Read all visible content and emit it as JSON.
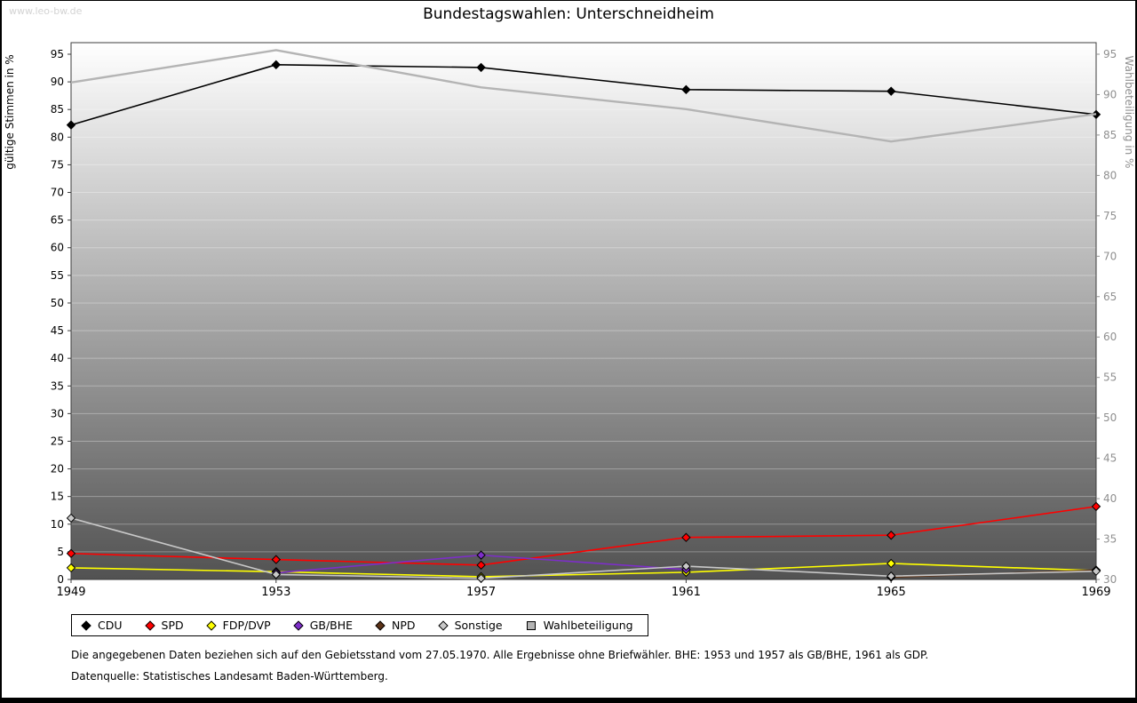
{
  "watermark": "www.leo-bw.de",
  "chart_data": {
    "type": "line",
    "title": "Bundestagswahlen: Unterschneidheim",
    "x": [
      1949,
      1953,
      1957,
      1961,
      1965,
      1969
    ],
    "left_axis": {
      "label": "gültige Stimmen in %",
      "range": [
        0,
        95
      ],
      "tick_step": 5,
      "ticks": [
        0,
        5,
        10,
        15,
        20,
        25,
        30,
        35,
        40,
        45,
        50,
        55,
        60,
        65,
        70,
        75,
        80,
        85,
        90,
        95
      ]
    },
    "right_axis": {
      "label": "Wahlbeteiligung in %",
      "range": [
        30,
        95
      ],
      "tick_step": 5,
      "ticks": [
        30,
        35,
        40,
        45,
        50,
        55,
        60,
        65,
        70,
        75,
        80,
        85,
        90,
        95
      ]
    },
    "grid": "horizontal-white",
    "legend_position": "bottom",
    "plot_background": {
      "gradient_top": "#ffffff",
      "gradient_bottom": "#525252"
    },
    "series": [
      {
        "name": "CDU",
        "axis": "left",
        "color": "#000000",
        "marker": "diamond",
        "values": [
          82.2,
          93.1,
          92.6,
          88.6,
          88.3,
          84.1
        ]
      },
      {
        "name": "SPD",
        "axis": "left",
        "color": "#ff0000",
        "marker": "diamond",
        "values": [
          4.7,
          3.6,
          2.6,
          7.6,
          8.0,
          13.2
        ]
      },
      {
        "name": "FDP/DVP",
        "axis": "left",
        "color": "#ffff00",
        "marker": "diamond",
        "values": [
          2.1,
          1.4,
          0.5,
          1.3,
          2.9,
          1.6
        ]
      },
      {
        "name": "GB/BHE",
        "axis": "left",
        "color": "#7d2ec9",
        "marker": "diamond",
        "values": [
          null,
          1.2,
          4.4,
          1.8,
          null,
          null
        ]
      },
      {
        "name": "NPD",
        "axis": "left",
        "color": "#5c3317",
        "marker": "diamond",
        "values": [
          null,
          null,
          null,
          null,
          0.4,
          1.7
        ]
      },
      {
        "name": "Sonstige",
        "axis": "left",
        "color": "#c8c8c8",
        "marker": "diamond",
        "values": [
          11.1,
          0.9,
          0.2,
          2.4,
          0.6,
          1.5
        ]
      },
      {
        "name": "Wahlbeteiligung",
        "axis": "right",
        "color": "#b4b4b4",
        "marker": "square",
        "values": [
          91.5,
          95.5,
          90.9,
          88.2,
          84.2,
          87.6
        ]
      }
    ]
  },
  "footnotes": {
    "line1": "Die angegebenen Daten beziehen sich auf den Gebietsstand vom 27.05.1970. Alle Ergebnisse ohne Briefwähler. BHE: 1953 und 1957 als GB/BHE, 1961 als GDP.",
    "line2": "Datenquelle: Statistisches Landesamt Baden-Württemberg."
  }
}
